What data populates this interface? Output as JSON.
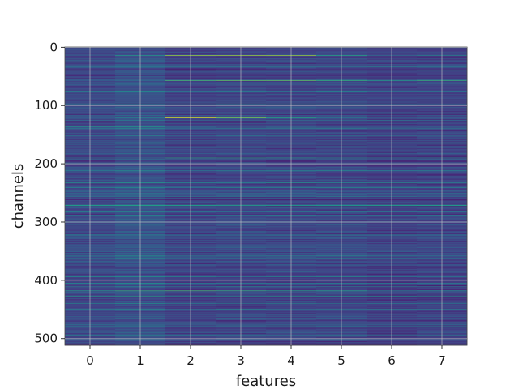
{
  "chart_data": {
    "type": "heatmap",
    "title": "",
    "xlabel": "features",
    "ylabel": "channels",
    "x_ticks": [
      "0",
      "1",
      "2",
      "3",
      "4",
      "5",
      "6",
      "7"
    ],
    "y_ticks": [
      "0",
      "100",
      "200",
      "300",
      "400",
      "500"
    ],
    "y_tick_values": [
      0,
      100,
      200,
      300,
      400,
      500
    ],
    "xlim": [
      -0.5,
      7.5
    ],
    "ylim": [
      511.5,
      -0.5
    ],
    "n_features": 8,
    "n_channels": 512,
    "colormap": "viridis",
    "grid": true,
    "grid_color": "#c8c8c8",
    "feature_base_levels": [
      0.22,
      0.25,
      0.2,
      0.21,
      0.21,
      0.21,
      0.19,
      0.2
    ],
    "highlighted_channels": [
      {
        "channel": 14,
        "values": [
          0.3,
          0.55,
          0.85,
          0.85,
          0.85,
          0.6,
          0.35,
          0.45
        ]
      },
      {
        "channel": 57,
        "values": [
          0.3,
          0.35,
          0.7,
          0.75,
          0.75,
          0.65,
          0.55,
          0.65
        ]
      },
      {
        "channel": 120,
        "values": [
          0.3,
          0.45,
          0.95,
          0.8,
          0.6,
          0.4,
          0.3,
          0.3
        ]
      },
      {
        "channel": 136,
        "values": [
          0.55,
          0.55,
          0.3,
          0.25,
          0.25,
          0.25,
          0.25,
          0.25
        ]
      },
      {
        "channel": 190,
        "values": [
          0.4,
          0.4,
          0.6,
          0.6,
          0.55,
          0.5,
          0.45,
          0.45
        ]
      },
      {
        "channel": 262,
        "values": [
          0.1,
          0.1,
          0.08,
          0.08,
          0.08,
          0.08,
          0.08,
          0.08
        ]
      },
      {
        "channel": 355,
        "values": [
          0.7,
          0.7,
          0.7,
          0.65,
          0.55,
          0.45,
          0.35,
          0.4
        ]
      },
      {
        "channel": 418,
        "values": [
          0.55,
          0.65,
          0.7,
          0.65,
          0.6,
          0.6,
          0.45,
          0.5
        ]
      },
      {
        "channel": 473,
        "values": [
          0.5,
          0.55,
          0.75,
          0.7,
          0.7,
          0.65,
          0.55,
          0.6
        ]
      }
    ]
  }
}
